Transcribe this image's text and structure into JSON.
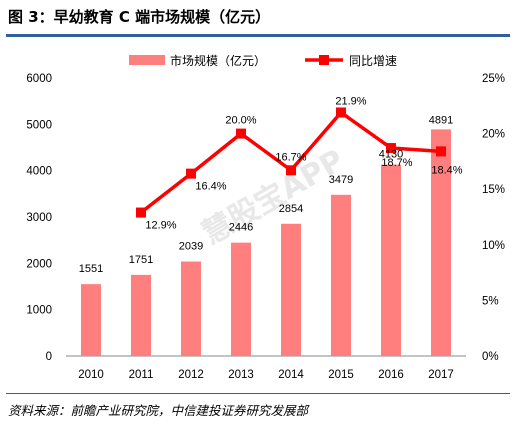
{
  "figure": {
    "title": "图 3：早幼教育 C 端市场规模（亿元）",
    "source": "资料来源：前瞻产业研究院，中信建投证券研究发展部",
    "watermark": "慧股宝APP"
  },
  "colors": {
    "bar": "#ff7f7f",
    "line": "#ff0000",
    "rule": "#2f5fa0"
  },
  "chart_data": {
    "type": "bar",
    "categories": [
      "2010",
      "2011",
      "2012",
      "2013",
      "2014",
      "2015",
      "2016",
      "2017"
    ],
    "series": [
      {
        "name": "市场规模（亿元）",
        "type": "bar",
        "axis": "left",
        "values": [
          1551,
          1751,
          2039,
          2446,
          2854,
          3479,
          4130,
          4891
        ],
        "labels": [
          "1551",
          "1751",
          "2039",
          "2446",
          "2854",
          "3479",
          "4130",
          "4891"
        ]
      },
      {
        "name": "同比增速",
        "type": "line",
        "axis": "right",
        "values": [
          null,
          12.9,
          16.4,
          20.0,
          16.7,
          21.9,
          18.7,
          18.4
        ],
        "labels": [
          "",
          "12.9%",
          "16.4%",
          "20.0%",
          "16.7%",
          "21.9%",
          "18.7%",
          "18.4%"
        ]
      }
    ],
    "y_left": {
      "min": 0,
      "max": 6000,
      "ticks": [
        "0",
        "1000",
        "2000",
        "3000",
        "4000",
        "5000",
        "6000"
      ]
    },
    "y_right": {
      "min": 0,
      "max": 25,
      "ticks": [
        "0%",
        "5%",
        "10%",
        "15%",
        "20%",
        "25%"
      ]
    },
    "legend": "top-center",
    "grid": false
  }
}
